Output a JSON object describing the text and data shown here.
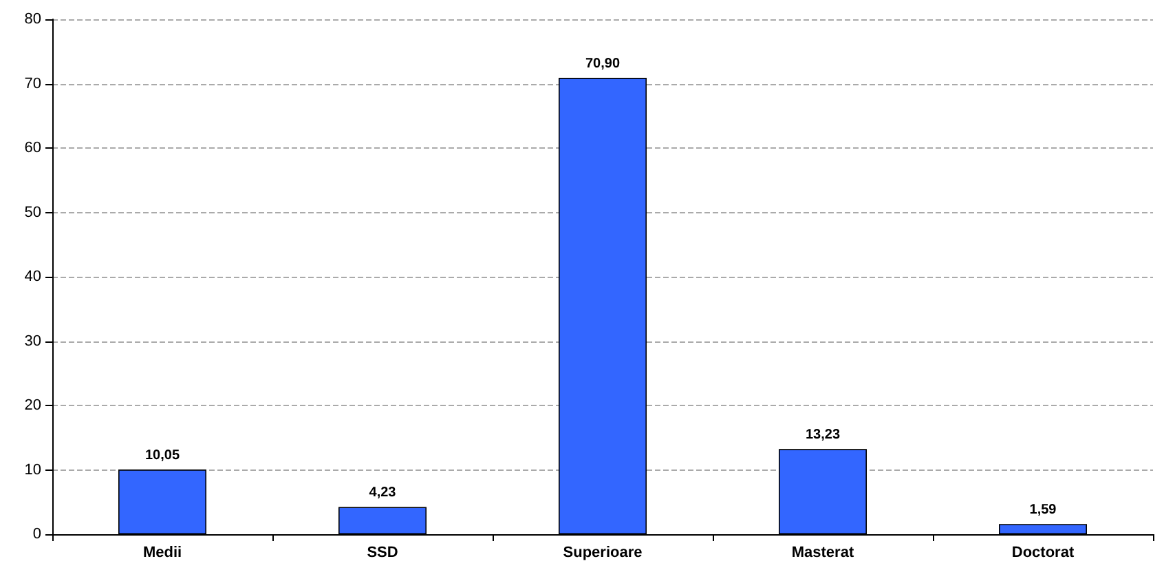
{
  "chart_data": {
    "type": "bar",
    "categories": [
      "Medii",
      "SSD",
      "Superioare",
      "Masterat",
      "Doctorat"
    ],
    "values": [
      10.05,
      4.23,
      70.9,
      13.23,
      1.59
    ],
    "value_labels": [
      "10,05",
      "4,23",
      "70,90",
      "13,23",
      "1,59"
    ],
    "color": "#3366ff",
    "ylim": [
      0,
      80
    ],
    "yticks": [
      0,
      10,
      20,
      30,
      40,
      50,
      60,
      70,
      80
    ],
    "grid": "y"
  }
}
